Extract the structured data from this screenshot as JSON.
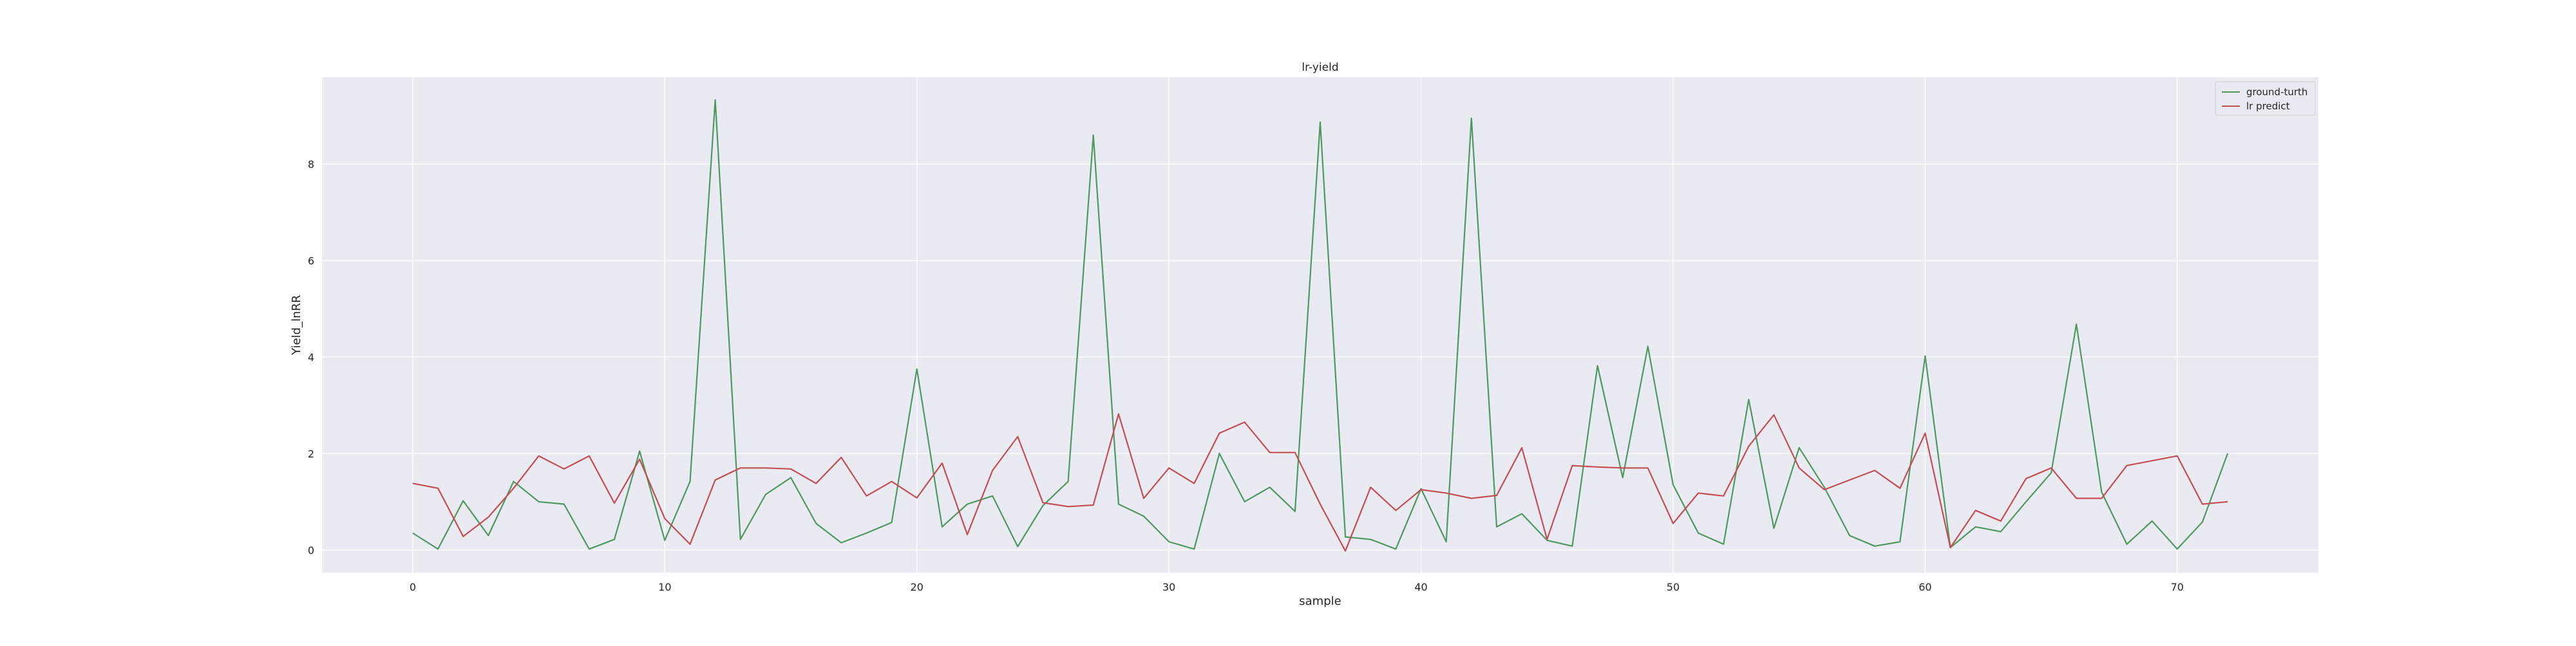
{
  "chart_data": {
    "type": "line",
    "title": "lr-yield",
    "xlabel": "sample",
    "ylabel": "Yield_lnRR",
    "xlim": [
      -3.6,
      75.6
    ],
    "ylim": [
      -0.47,
      9.8
    ],
    "x_ticks": [
      0,
      10,
      20,
      30,
      40,
      50,
      60,
      70
    ],
    "y_ticks": [
      0,
      2,
      4,
      6,
      8
    ],
    "grid": true,
    "legend_position": "top-right",
    "x": [
      0,
      1,
      2,
      3,
      4,
      5,
      6,
      7,
      8,
      9,
      10,
      11,
      12,
      13,
      14,
      15,
      16,
      17,
      18,
      19,
      20,
      21,
      22,
      23,
      24,
      25,
      26,
      27,
      28,
      29,
      30,
      31,
      32,
      33,
      34,
      35,
      36,
      37,
      38,
      39,
      40,
      41,
      42,
      43,
      44,
      45,
      46,
      47,
      48,
      49,
      50,
      51,
      52,
      53,
      54,
      55,
      56,
      57,
      58,
      59,
      60,
      61,
      62,
      63,
      64,
      65,
      66,
      67,
      68,
      69,
      70,
      71,
      72
    ],
    "series": [
      {
        "name": "ground-turth",
        "color": "#4c9a5e",
        "values": [
          0.35,
          0.02,
          1.02,
          0.3,
          1.42,
          1.0,
          0.95,
          0.02,
          0.22,
          2.05,
          0.2,
          1.42,
          9.33,
          0.22,
          1.15,
          1.5,
          0.55,
          0.15,
          0.35,
          0.57,
          3.75,
          0.48,
          0.95,
          1.12,
          0.07,
          0.92,
          1.42,
          8.6,
          0.95,
          0.7,
          0.17,
          0.02,
          2.0,
          1.0,
          1.3,
          0.8,
          8.87,
          0.27,
          0.22,
          0.02,
          1.27,
          0.17,
          8.95,
          0.48,
          0.75,
          0.2,
          0.08,
          3.82,
          1.5,
          4.22,
          1.35,
          0.35,
          0.12,
          3.12,
          0.45,
          2.12,
          1.3,
          0.3,
          0.08,
          0.17,
          4.02,
          0.05,
          0.48,
          0.38,
          1.0,
          1.6,
          4.68,
          1.2,
          0.12,
          0.6,
          0.02,
          0.58,
          2.0
        ]
      },
      {
        "name": "lr predict",
        "color": "#c44e52",
        "values": [
          1.38,
          1.28,
          0.28,
          0.68,
          1.28,
          1.95,
          1.68,
          1.95,
          0.97,
          1.88,
          0.65,
          0.12,
          1.45,
          1.7,
          1.7,
          1.68,
          1.38,
          1.92,
          1.12,
          1.42,
          1.08,
          1.8,
          0.32,
          1.65,
          2.35,
          0.98,
          0.9,
          0.93,
          2.82,
          1.07,
          1.7,
          1.38,
          2.42,
          2.65,
          2.02,
          2.02,
          0.95,
          -0.02,
          1.3,
          0.82,
          1.25,
          1.18,
          1.07,
          1.13,
          2.12,
          0.22,
          1.75,
          1.72,
          1.7,
          1.7,
          0.55,
          1.18,
          1.12,
          2.15,
          2.8,
          1.7,
          1.25,
          1.45,
          1.65,
          1.28,
          2.42,
          0.05,
          0.82,
          0.6,
          1.48,
          1.7,
          1.07,
          1.07,
          1.75,
          1.85,
          1.95,
          0.95,
          1.0
        ]
      }
    ]
  }
}
